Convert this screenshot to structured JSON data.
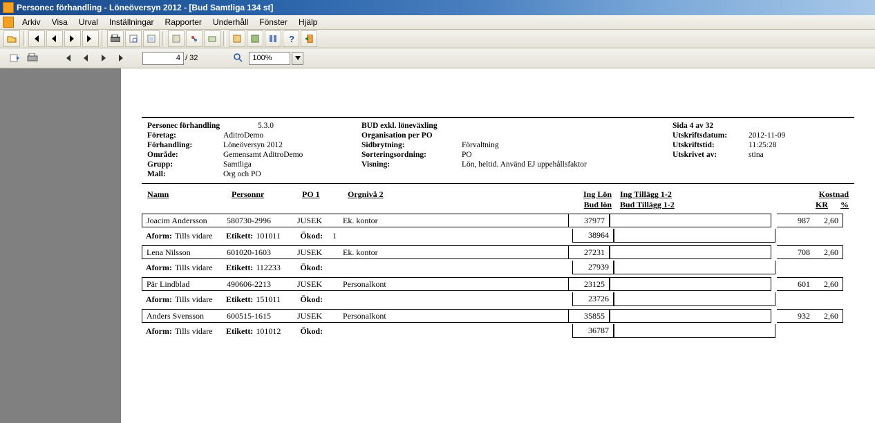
{
  "window": {
    "title": "Personec förhandling - Löneöversyn 2012 - [Bud Samtliga 134 st]"
  },
  "menus": [
    "Arkiv",
    "Visa",
    "Urval",
    "Inställningar",
    "Rapporter",
    "Underhåll",
    "Fönster",
    "Hjälp"
  ],
  "nav": {
    "page": "4",
    "pages": "/ 32",
    "zoom": "100%"
  },
  "hdr": {
    "left": {
      "title_l": "Personec förhandling",
      "title_v": "5.3.0",
      "foretag_l": "Företag:",
      "foretag_v": "AditroDemo",
      "forh_l": "Förhandling:",
      "forh_v": "Löneöversyn 2012",
      "omr_l": "Område:",
      "omr_v": "Gemensamt AditroDemo",
      "grupp_l": "Grupp:",
      "grupp_v": "Samtliga",
      "mall_l": "Mall:",
      "mall_v": "Org och PO"
    },
    "mid": {
      "r1_l": "BUD exkl. löneväxling",
      "r1_v": "",
      "r2_l": "Organisation per PO",
      "r2_v": "",
      "r3_l": "Sidbrytning:",
      "r3_v": "Förvaltning",
      "r4_l": "Sorteringsordning:",
      "r4_v": "PO",
      "r5_l": "Visning:",
      "r5_v": "Lön, heltid. Använd EJ uppehållsfaktor"
    },
    "right": {
      "sida_l": "Sida 4 av 32",
      "sida_v": "",
      "utskd_l": "Utskriftsdatum:",
      "utskd_v": "2012-11-09",
      "utskt_l": "Utskriftstid:",
      "utskt_v": "11:25:28",
      "utskav_l": "Utskrivet av:",
      "utskav_v": "stina"
    }
  },
  "th": {
    "namn": "Namn",
    "pnr": "Personnr",
    "po1": "PO 1",
    "orgn": "Orgnivå 2",
    "inglon": "Ing Lön",
    "budlon": "Bud lön",
    "ingt": "Ing Tillägg 1-2",
    "budt": "Bud Tillägg 1-2",
    "kost": "Kostnad",
    "kr": "KR",
    "pct": "%"
  },
  "rows": [
    {
      "namn": "Joacim Andersson",
      "pnr": "580730-2996",
      "po1": "JUSEK",
      "orgn": "Ek. kontor",
      "inglon": "37977",
      "budlon": "38964",
      "kost": "987",
      "pct": "2,60",
      "aform": "Tills vidare",
      "etikett": "101011",
      "okod": "1"
    },
    {
      "namn": "Lena Nilsson",
      "pnr": "601020-1603",
      "po1": "JUSEK",
      "orgn": "Ek. kontor",
      "inglon": "27231",
      "budlon": "27939",
      "kost": "708",
      "pct": "2,60",
      "aform": "Tills vidare",
      "etikett": "112233",
      "okod": ""
    },
    {
      "namn": "Pär Lindblad",
      "pnr": "490606-2213",
      "po1": "JUSEK",
      "orgn": "Personalkont",
      "inglon": "23125",
      "budlon": "23726",
      "kost": "601",
      "pct": "2,60",
      "aform": "Tills vidare",
      "etikett": "151011",
      "okod": ""
    },
    {
      "namn": "Anders Svensson",
      "pnr": "600515-1615",
      "po1": "JUSEK",
      "orgn": "Personalkont",
      "inglon": "35855",
      "budlon": "36787",
      "kost": "932",
      "pct": "2,60",
      "aform": "Tills vidare",
      "etikett": "101012",
      "okod": ""
    }
  ],
  "lbl": {
    "aform": "Aform:",
    "etikett": "Etikett:",
    "okod": "Ökod:"
  }
}
